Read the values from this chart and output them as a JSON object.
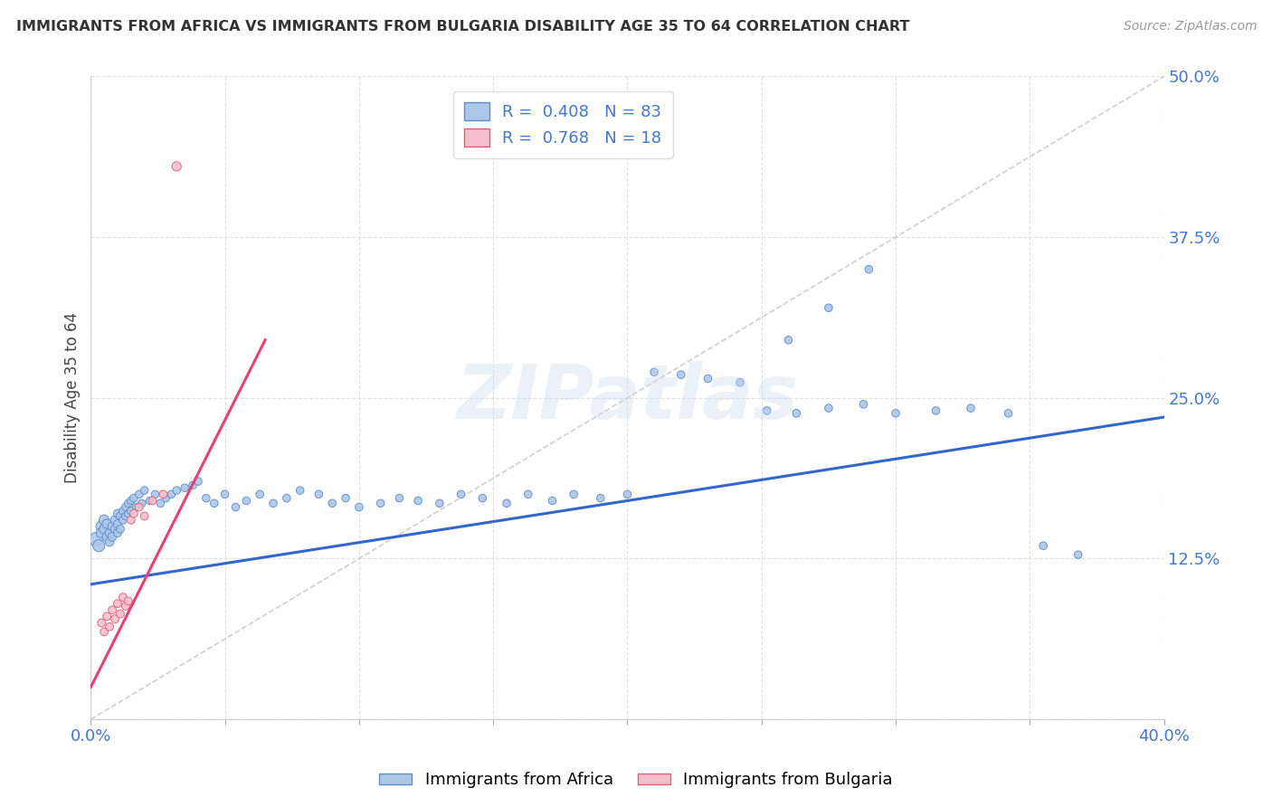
{
  "title": "IMMIGRANTS FROM AFRICA VS IMMIGRANTS FROM BULGARIA DISABILITY AGE 35 TO 64 CORRELATION CHART",
  "source": "Source: ZipAtlas.com",
  "ylabel": "Disability Age 35 to 64",
  "xlim": [
    0.0,
    0.4
  ],
  "ylim": [
    0.0,
    0.5
  ],
  "xticks": [
    0.0,
    0.05,
    0.1,
    0.15,
    0.2,
    0.25,
    0.3,
    0.35,
    0.4
  ],
  "yticks": [
    0.0,
    0.125,
    0.25,
    0.375,
    0.5
  ],
  "africa_color": "#aec6e8",
  "africa_edge_color": "#5b8dc8",
  "bulgaria_color": "#f4bfcc",
  "bulgaria_edge_color": "#e0607a",
  "trendline_africa_color": "#3366cc",
  "trendline_bulgaria_color": "#e84070",
  "trendline_ref_color": "#bbbbbb",
  "legend_africa_R": "0.408",
  "legend_africa_N": "83",
  "legend_bulgaria_R": "0.768",
  "legend_bulgaria_N": "18",
  "watermark": "ZIPatlas",
  "africa_label": "Immigrants from Africa",
  "bulgaria_label": "Immigrants from Bulgaria",
  "africa_x": [
    0.002,
    0.003,
    0.004,
    0.004,
    0.005,
    0.005,
    0.006,
    0.006,
    0.007,
    0.007,
    0.008,
    0.008,
    0.009,
    0.009,
    0.01,
    0.01,
    0.01,
    0.011,
    0.011,
    0.012,
    0.012,
    0.013,
    0.013,
    0.014,
    0.014,
    0.015,
    0.015,
    0.016,
    0.017,
    0.018,
    0.019,
    0.02,
    0.022,
    0.024,
    0.026,
    0.028,
    0.03,
    0.032,
    0.035,
    0.038,
    0.04,
    0.043,
    0.046,
    0.05,
    0.054,
    0.058,
    0.063,
    0.068,
    0.073,
    0.078,
    0.085,
    0.09,
    0.095,
    0.1,
    0.108,
    0.115,
    0.122,
    0.13,
    0.138,
    0.146,
    0.155,
    0.163,
    0.172,
    0.18,
    0.19,
    0.2,
    0.21,
    0.22,
    0.23,
    0.242,
    0.252,
    0.263,
    0.275,
    0.288,
    0.3,
    0.315,
    0.328,
    0.342,
    0.355,
    0.368,
    0.26,
    0.275,
    0.29
  ],
  "africa_y": [
    0.14,
    0.135,
    0.15,
    0.145,
    0.155,
    0.148,
    0.142,
    0.152,
    0.138,
    0.145,
    0.15,
    0.142,
    0.155,
    0.148,
    0.16,
    0.152,
    0.145,
    0.158,
    0.148,
    0.162,
    0.155,
    0.165,
    0.158,
    0.168,
    0.16,
    0.17,
    0.162,
    0.172,
    0.165,
    0.175,
    0.168,
    0.178,
    0.17,
    0.175,
    0.168,
    0.172,
    0.175,
    0.178,
    0.18,
    0.182,
    0.185,
    0.172,
    0.168,
    0.175,
    0.165,
    0.17,
    0.175,
    0.168,
    0.172,
    0.178,
    0.175,
    0.168,
    0.172,
    0.165,
    0.168,
    0.172,
    0.17,
    0.168,
    0.175,
    0.172,
    0.168,
    0.175,
    0.17,
    0.175,
    0.172,
    0.175,
    0.27,
    0.268,
    0.265,
    0.262,
    0.24,
    0.238,
    0.242,
    0.245,
    0.238,
    0.24,
    0.242,
    0.238,
    0.135,
    0.128,
    0.295,
    0.32,
    0.35
  ],
  "africa_size": [
    120,
    90,
    80,
    70,
    65,
    60,
    55,
    55,
    50,
    50,
    50,
    48,
    48,
    45,
    45,
    45,
    42,
    42,
    40,
    40,
    40,
    40,
    38,
    38,
    38,
    38,
    38,
    38,
    38,
    38,
    38,
    38,
    38,
    38,
    38,
    38,
    38,
    38,
    38,
    38,
    38,
    38,
    38,
    38,
    38,
    38,
    38,
    38,
    38,
    38,
    38,
    38,
    38,
    38,
    38,
    38,
    38,
    38,
    38,
    38,
    38,
    38,
    38,
    38,
    38,
    38,
    38,
    38,
    38,
    38,
    38,
    38,
    38,
    38,
    38,
    38,
    38,
    38,
    38,
    38,
    38,
    38,
    38
  ],
  "bulgaria_x": [
    0.004,
    0.005,
    0.006,
    0.007,
    0.008,
    0.009,
    0.01,
    0.011,
    0.012,
    0.013,
    0.014,
    0.015,
    0.016,
    0.018,
    0.02,
    0.023,
    0.027,
    0.032
  ],
  "bulgaria_y": [
    0.075,
    0.068,
    0.08,
    0.072,
    0.085,
    0.078,
    0.09,
    0.082,
    0.095,
    0.088,
    0.092,
    0.155,
    0.16,
    0.165,
    0.158,
    0.17,
    0.175,
    0.43
  ],
  "bulgaria_size": [
    40,
    40,
    40,
    40,
    40,
    40,
    40,
    40,
    40,
    40,
    40,
    40,
    40,
    40,
    40,
    40,
    40,
    55
  ],
  "trendline_africa_x0": 0.0,
  "trendline_africa_x1": 0.4,
  "trendline_africa_y0": 0.105,
  "trendline_africa_y1": 0.235,
  "trendline_bulgaria_x0": 0.0,
  "trendline_bulgaria_x1": 0.065,
  "trendline_bulgaria_y0": 0.025,
  "trendline_bulgaria_y1": 0.295,
  "ref_line_x": [
    0.0,
    0.4
  ],
  "ref_line_y": [
    0.0,
    0.5
  ]
}
